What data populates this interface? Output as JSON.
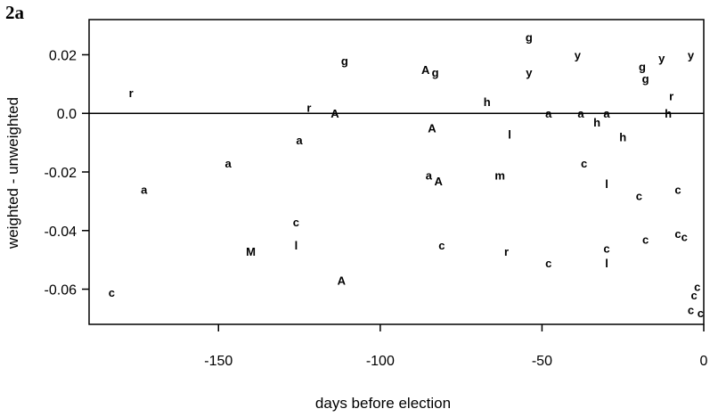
{
  "panel_label": "2a",
  "chart_data": {
    "type": "scatter",
    "xlabel": "days before election",
    "ylabel": "weighted - unweighted",
    "xlim": [
      -190,
      0
    ],
    "ylim": [
      -0.072,
      0.032
    ],
    "xticks": [
      -150,
      -100,
      -50,
      0
    ],
    "xtick_labels": [
      "-150",
      "-100",
      "-50",
      "0"
    ],
    "yticks": [
      0.02,
      0.0,
      -0.02,
      -0.04,
      -0.06
    ],
    "ytick_labels": [
      "0.02",
      "0.0",
      "-0.02",
      "-0.04",
      "-0.06"
    ],
    "reference_line_y": 0,
    "grid": false,
    "points": [
      {
        "x": -177,
        "y": 0.007,
        "label": "r"
      },
      {
        "x": -173,
        "y": -0.026,
        "label": "a"
      },
      {
        "x": -183,
        "y": -0.061,
        "label": "c"
      },
      {
        "x": -147,
        "y": -0.017,
        "label": "a"
      },
      {
        "x": -140,
        "y": -0.047,
        "label": "M"
      },
      {
        "x": -126,
        "y": -0.037,
        "label": "c"
      },
      {
        "x": -126,
        "y": -0.045,
        "label": "l"
      },
      {
        "x": -125,
        "y": -0.009,
        "label": "a"
      },
      {
        "x": -122,
        "y": 0.002,
        "label": "r"
      },
      {
        "x": -114,
        "y": 0.0,
        "label": "A"
      },
      {
        "x": -111,
        "y": 0.018,
        "label": "g"
      },
      {
        "x": -112,
        "y": -0.057,
        "label": "A"
      },
      {
        "x": -86,
        "y": 0.015,
        "label": "A"
      },
      {
        "x": -83,
        "y": 0.014,
        "label": "g"
      },
      {
        "x": -84,
        "y": -0.005,
        "label": "A"
      },
      {
        "x": -85,
        "y": -0.021,
        "label": "a"
      },
      {
        "x": -82,
        "y": -0.023,
        "label": "A"
      },
      {
        "x": -81,
        "y": -0.045,
        "label": "c"
      },
      {
        "x": -67,
        "y": 0.004,
        "label": "h"
      },
      {
        "x": -63,
        "y": -0.021,
        "label": "m"
      },
      {
        "x": -60,
        "y": -0.007,
        "label": "l"
      },
      {
        "x": -61,
        "y": -0.047,
        "label": "r"
      },
      {
        "x": -54,
        "y": 0.026,
        "label": "g"
      },
      {
        "x": -54,
        "y": 0.014,
        "label": "y"
      },
      {
        "x": -48,
        "y": 0.0,
        "label": "a"
      },
      {
        "x": -48,
        "y": -0.051,
        "label": "c"
      },
      {
        "x": -39,
        "y": 0.02,
        "label": "y"
      },
      {
        "x": -38,
        "y": 0.0,
        "label": "a"
      },
      {
        "x": -37,
        "y": -0.017,
        "label": "c"
      },
      {
        "x": -33,
        "y": -0.003,
        "label": "h"
      },
      {
        "x": -30,
        "y": 0.0,
        "label": "a"
      },
      {
        "x": -30,
        "y": -0.024,
        "label": "l"
      },
      {
        "x": -30,
        "y": -0.046,
        "label": "c"
      },
      {
        "x": -30,
        "y": -0.051,
        "label": "l"
      },
      {
        "x": -25,
        "y": -0.008,
        "label": "h"
      },
      {
        "x": -20,
        "y": -0.028,
        "label": "c"
      },
      {
        "x": -19,
        "y": 0.016,
        "label": "g"
      },
      {
        "x": -18,
        "y": 0.012,
        "label": "g"
      },
      {
        "x": -18,
        "y": -0.043,
        "label": "c"
      },
      {
        "x": -13,
        "y": 0.019,
        "label": "y"
      },
      {
        "x": -10,
        "y": 0.006,
        "label": "r"
      },
      {
        "x": -11,
        "y": 0.0,
        "label": "h"
      },
      {
        "x": -8,
        "y": -0.026,
        "label": "c"
      },
      {
        "x": -8,
        "y": -0.041,
        "label": "c"
      },
      {
        "x": -6,
        "y": -0.042,
        "label": "c"
      },
      {
        "x": -4,
        "y": 0.02,
        "label": "y"
      },
      {
        "x": -2,
        "y": -0.059,
        "label": "c"
      },
      {
        "x": -3,
        "y": -0.062,
        "label": "c"
      },
      {
        "x": -4,
        "y": -0.067,
        "label": "c"
      },
      {
        "x": -1,
        "y": -0.068,
        "label": "c"
      }
    ]
  }
}
